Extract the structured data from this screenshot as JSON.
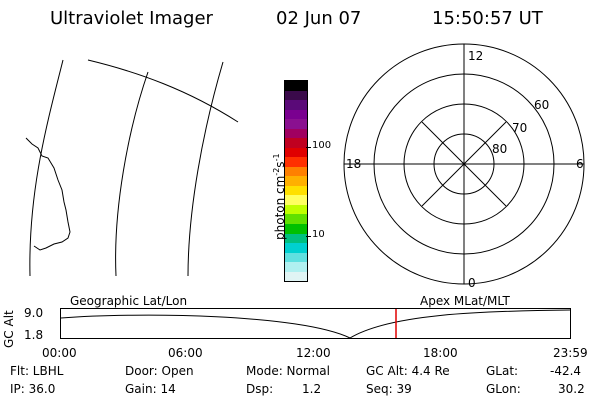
{
  "header": {
    "instrument": "Ultraviolet Imager",
    "date": "02 Jun 07",
    "time": "15:50:57 UT"
  },
  "colorbar": {
    "label": "photon cm",
    "label_sup1": "-2",
    "label_mid": "s",
    "label_sup2": "-1",
    "tick_high": "100",
    "tick_low": "10",
    "colors": [
      "#000000",
      "#3a0a4a",
      "#5a0a78",
      "#7a0090",
      "#8a1090",
      "#a00060",
      "#c00020",
      "#e00000",
      "#ff3000",
      "#ff8000",
      "#ffb000",
      "#ffe000",
      "#ffff60",
      "#c0ff00",
      "#60e000",
      "#00c000",
      "#00c080",
      "#00d0d0",
      "#60e0e0",
      "#b0f0f0",
      "#e0f4f4"
    ]
  },
  "polar": {
    "labels": {
      "mlt_top": "12",
      "mlt_bottom": "0",
      "mlt_left": "18",
      "mlt_right": "6",
      "lat_60": "60",
      "lat_70": "70",
      "lat_80": "80"
    }
  },
  "timeline": {
    "left_caption": "Geographic Lat/Lon",
    "right_caption": "Apex MLat/MLT",
    "y_axis_label": "GC Alt",
    "y_ticks": [
      "9.0",
      "1.8"
    ],
    "x_ticks": [
      "00:00",
      "06:00",
      "12:00",
      "18:00",
      "23:59"
    ],
    "marker_color": "#e00000"
  },
  "status": {
    "filter": "Flt: LBHL",
    "ip": "IP: 36.0",
    "door": "Door: Open",
    "gain": "Gain: 14",
    "mode": "Mode: Normal",
    "dsp_label": "Dsp:",
    "dsp_value": "1.2",
    "gc_alt": "GC Alt: 4.4 Re",
    "seq": "Seq: 39",
    "glat_label": "GLat:",
    "glat_value": "-42.4",
    "glon_label": "GLon:",
    "glon_value": "30.2"
  }
}
